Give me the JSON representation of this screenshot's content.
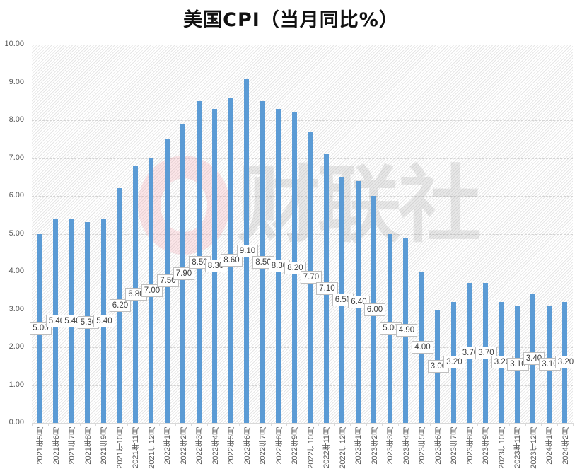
{
  "chart_data": {
    "type": "bar",
    "title": "美国CPI（当月同比%）",
    "xlabel": "",
    "ylabel": "",
    "ylim": [
      0,
      10
    ],
    "yticks": [
      "0.00",
      "1.00",
      "2.00",
      "3.00",
      "4.00",
      "5.00",
      "6.00",
      "7.00",
      "8.00",
      "9.00",
      "10.00"
    ],
    "grid": true,
    "legend": null,
    "bar_color": "#5b9bd5",
    "categories": [
      "2021年5月",
      "2021年6月",
      "2021年7月",
      "2021年8月",
      "2021年9月",
      "2021年10月",
      "2021年11月",
      "2021年12月",
      "2022年1月",
      "2022年2月",
      "2022年3月",
      "2022年4月",
      "2022年5月",
      "2022年6月",
      "2022年7月",
      "2022年8月",
      "2022年9月",
      "2022年10月",
      "2022年11月",
      "2022年12月",
      "2023年1月",
      "2023年2月",
      "2023年3月",
      "2023年4月",
      "2023年5月",
      "2023年6月",
      "2023年7月",
      "2023年8月",
      "2023年9月",
      "2023年10月",
      "2023年11月",
      "2023年12月",
      "2024年1月",
      "2024年2月"
    ],
    "values": [
      5.0,
      5.4,
      5.4,
      5.3,
      5.4,
      6.2,
      6.8,
      7.0,
      7.5,
      7.9,
      8.5,
      8.3,
      8.6,
      9.1,
      8.5,
      8.3,
      8.2,
      7.7,
      7.1,
      6.5,
      6.4,
      6.0,
      5.0,
      4.9,
      4.0,
      3.0,
      3.2,
      3.7,
      3.7,
      3.2,
      3.1,
      3.4,
      3.1,
      3.2
    ],
    "data_labels": [
      "5.00",
      "5.40",
      "5.40",
      "5.30",
      "5.40",
      "6.20",
      "6.80",
      "7.00",
      "7.50",
      "7.90",
      "8.50",
      "8.30",
      "8.60",
      "9.10",
      "8.50",
      "8.30",
      "8.20",
      "7.70",
      "7.10",
      "6.50",
      "6.40",
      "6.00",
      "5.00",
      "4.90",
      "4.00",
      "3.00",
      "3.20",
      "3.70",
      "3.70",
      "3.20",
      "3.10",
      "3.40",
      "3.10",
      "3.20"
    ]
  },
  "watermark": {
    "text": "财联社",
    "logo": "cls-c-logo"
  }
}
